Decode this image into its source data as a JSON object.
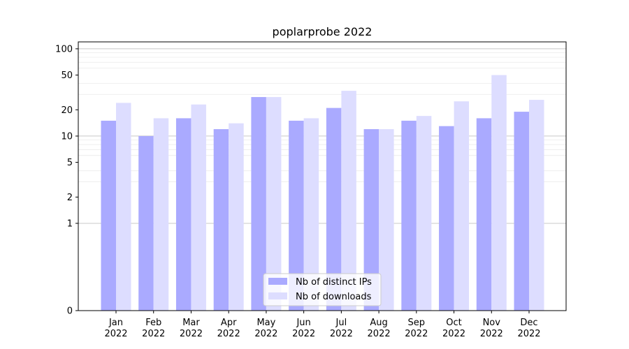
{
  "chart_data": {
    "type": "bar",
    "title": "poplarprobe 2022",
    "xlabel": "",
    "ylabel": "",
    "yscale": "symlog",
    "ylim": [
      0,
      120
    ],
    "yticks": [
      0,
      1,
      2,
      5,
      10,
      20,
      50,
      100
    ],
    "grid": "y-major-and-minor",
    "legend_position": "bottom-center",
    "categories": [
      [
        "Jan",
        "2022"
      ],
      [
        "Feb",
        "2022"
      ],
      [
        "Mar",
        "2022"
      ],
      [
        "Apr",
        "2022"
      ],
      [
        "May",
        "2022"
      ],
      [
        "Jun",
        "2022"
      ],
      [
        "Jul",
        "2022"
      ],
      [
        "Aug",
        "2022"
      ],
      [
        "Sep",
        "2022"
      ],
      [
        "Oct",
        "2022"
      ],
      [
        "Nov",
        "2022"
      ],
      [
        "Dec",
        "2022"
      ]
    ],
    "series": [
      {
        "name": "Nb of distinct IPs",
        "color": "#aaaaff",
        "values": [
          15,
          10,
          16,
          12,
          28,
          15,
          21,
          12,
          15,
          13,
          16,
          19
        ]
      },
      {
        "name": "Nb of downloads",
        "color": "#ddddff",
        "values": [
          24,
          16,
          23,
          14,
          28,
          16,
          33,
          12,
          17,
          25,
          50,
          26
        ]
      }
    ]
  }
}
